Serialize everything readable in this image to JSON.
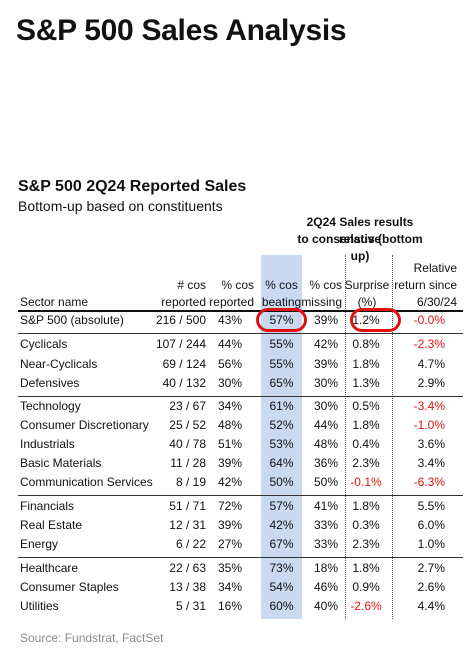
{
  "page_title": "S&P 500 Sales Analysis",
  "table_title": "S&P 500 2Q24 Reported Sales",
  "table_subtitle": "Bottom-up based on constituents",
  "group_header": {
    "line1": "2Q24 Sales results relative",
    "line2": "to consensus (bottom up)"
  },
  "columns": {
    "sector": "Sector name",
    "reported_l1": "# cos",
    "reported_l2": "reported",
    "cos_l1": "% cos",
    "cos_l2": "reported",
    "beat_l1": "% cos",
    "beat_l2": "beating",
    "miss_l1": "% cos",
    "miss_l2": "missing",
    "surp_l1": "Surprise",
    "surp_l2": "(%)",
    "ret_l1": "Relative",
    "ret_l2": "return since",
    "ret_l3": "6/30/24"
  },
  "rows": [
    {
      "name": "S&P 500 (absolute)",
      "reported": "216 / 500",
      "pct_reported": "43%",
      "pct_beating": "57%",
      "pct_missing": "39%",
      "surprise": "1.2%",
      "rel_return": "-0.0%"
    },
    {
      "name": "Cyclicals",
      "reported": "107 / 244",
      "pct_reported": "44%",
      "pct_beating": "55%",
      "pct_missing": "42%",
      "surprise": "0.8%",
      "rel_return": "-2.3%"
    },
    {
      "name": "Near-Cyclicals",
      "reported": "69 / 124",
      "pct_reported": "56%",
      "pct_beating": "55%",
      "pct_missing": "39%",
      "surprise": "1.8%",
      "rel_return": "4.7%"
    },
    {
      "name": "Defensives",
      "reported": "40 / 132",
      "pct_reported": "30%",
      "pct_beating": "65%",
      "pct_missing": "30%",
      "surprise": "1.3%",
      "rel_return": "2.9%"
    },
    {
      "name": "Technology",
      "reported": "23 / 67",
      "pct_reported": "34%",
      "pct_beating": "61%",
      "pct_missing": "30%",
      "surprise": "0.5%",
      "rel_return": "-3.4%"
    },
    {
      "name": "Consumer Discretionary",
      "reported": "25 / 52",
      "pct_reported": "48%",
      "pct_beating": "52%",
      "pct_missing": "44%",
      "surprise": "1.8%",
      "rel_return": "-1.0%"
    },
    {
      "name": "Industrials",
      "reported": "40 / 78",
      "pct_reported": "51%",
      "pct_beating": "53%",
      "pct_missing": "48%",
      "surprise": "0.4%",
      "rel_return": "3.6%"
    },
    {
      "name": "Basic Materials",
      "reported": "11 / 28",
      "pct_reported": "39%",
      "pct_beating": "64%",
      "pct_missing": "36%",
      "surprise": "2.3%",
      "rel_return": "3.4%"
    },
    {
      "name": "Communication Services",
      "reported": "8 / 19",
      "pct_reported": "42%",
      "pct_beating": "50%",
      "pct_missing": "50%",
      "surprise": "-0.1%",
      "rel_return": "-6.3%"
    },
    {
      "name": "Financials",
      "reported": "51 / 71",
      "pct_reported": "72%",
      "pct_beating": "57%",
      "pct_missing": "41%",
      "surprise": "1.8%",
      "rel_return": "5.5%"
    },
    {
      "name": "Real Estate",
      "reported": "12 / 31",
      "pct_reported": "39%",
      "pct_beating": "42%",
      "pct_missing": "33%",
      "surprise": "0.3%",
      "rel_return": "6.0%"
    },
    {
      "name": "Energy",
      "reported": "6 / 22",
      "pct_reported": "27%",
      "pct_beating": "67%",
      "pct_missing": "33%",
      "surprise": "2.3%",
      "rel_return": "1.0%"
    },
    {
      "name": "Healthcare",
      "reported": "22 / 63",
      "pct_reported": "35%",
      "pct_beating": "73%",
      "pct_missing": "18%",
      "surprise": "1.8%",
      "rel_return": "2.7%"
    },
    {
      "name": "Consumer Staples",
      "reported": "13 / 38",
      "pct_reported": "34%",
      "pct_beating": "54%",
      "pct_missing": "46%",
      "surprise": "0.9%",
      "rel_return": "2.6%"
    },
    {
      "name": "Utilities",
      "reported": "5 / 31",
      "pct_reported": "16%",
      "pct_beating": "60%",
      "pct_missing": "40%",
      "surprise": "-2.6%",
      "rel_return": "4.4%"
    }
  ],
  "source": "Source: Fundstrat, FactSet",
  "colors": {
    "highlight_column": "#c8d9f0",
    "negative": "#e3140f",
    "circle": "#e01010"
  }
}
